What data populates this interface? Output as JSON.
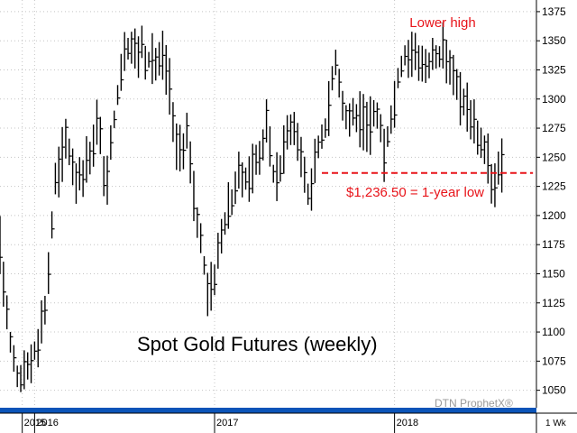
{
  "chart_data": {
    "type": "ohlc",
    "title": "Spot Gold Futures (weekly)",
    "brand": "DTN ProphetX®",
    "period_label": "1 Wk",
    "y_range": [
      1035,
      1385
    ],
    "y_ticks": [
      1050,
      1075,
      1100,
      1125,
      1150,
      1175,
      1200,
      1225,
      1250,
      1275,
      1300,
      1325,
      1350,
      1375
    ],
    "year_labels": [
      "2015",
      "2016",
      "2017",
      "2018"
    ],
    "year_label_dates": [
      "2015-12-10",
      "2016-01-04",
      "2017-01-02",
      "2018-01-01"
    ],
    "x_domain": [
      "2015-10-26",
      "2018-10-15"
    ],
    "grid": true,
    "annotations": {
      "lower_high": "Lower high",
      "low_label": "$1,236.50 = 1-year low",
      "low_level": 1236.5,
      "low_line_start": "2017-08-07",
      "low_line_end": "2018-10-08"
    },
    "anchors": [
      [
        "2015-10-26",
        1175
      ],
      [
        "2015-11-16",
        1090
      ],
      [
        "2015-11-30",
        1060
      ],
      [
        "2015-12-14",
        1060
      ],
      [
        "2016-01-04",
        1085
      ],
      [
        "2016-01-25",
        1120
      ],
      [
        "2016-02-15",
        1225
      ],
      [
        "2016-03-07",
        1265
      ],
      [
        "2016-03-28",
        1235
      ],
      [
        "2016-04-18",
        1245
      ],
      [
        "2016-05-09",
        1280
      ],
      [
        "2016-05-30",
        1225
      ],
      [
        "2016-06-13",
        1285
      ],
      [
        "2016-07-04",
        1350
      ],
      [
        "2016-07-25",
        1340
      ],
      [
        "2016-08-08",
        1345
      ],
      [
        "2016-08-29",
        1330
      ],
      [
        "2016-09-19",
        1335
      ],
      [
        "2016-10-03",
        1310
      ],
      [
        "2016-10-17",
        1255
      ],
      [
        "2016-11-07",
        1270
      ],
      [
        "2016-11-21",
        1215
      ],
      [
        "2016-12-05",
        1175
      ],
      [
        "2016-12-19",
        1140
      ],
      [
        "2017-01-02",
        1150
      ],
      [
        "2017-01-23",
        1195
      ],
      [
        "2017-02-13",
        1225
      ],
      [
        "2017-03-06",
        1235
      ],
      [
        "2017-03-27",
        1245
      ],
      [
        "2017-04-17",
        1275
      ],
      [
        "2017-05-01",
        1235
      ],
      [
        "2017-05-15",
        1240
      ],
      [
        "2017-06-05",
        1280
      ],
      [
        "2017-06-26",
        1255
      ],
      [
        "2017-07-10",
        1215
      ],
      [
        "2017-07-31",
        1255
      ],
      [
        "2017-08-21",
        1290
      ],
      [
        "2017-09-04",
        1335
      ],
      [
        "2017-09-25",
        1280
      ],
      [
        "2017-10-16",
        1285
      ],
      [
        "2017-11-06",
        1275
      ],
      [
        "2017-11-27",
        1285
      ],
      [
        "2017-12-11",
        1255
      ],
      [
        "2017-12-25",
        1285
      ],
      [
        "2018-01-15",
        1330
      ],
      [
        "2018-01-29",
        1340
      ],
      [
        "2018-02-12",
        1345
      ],
      [
        "2018-03-05",
        1320
      ],
      [
        "2018-03-26",
        1340
      ],
      [
        "2018-04-16",
        1340
      ],
      [
        "2018-05-07",
        1305
      ],
      [
        "2018-05-28",
        1295
      ],
      [
        "2018-06-18",
        1270
      ],
      [
        "2018-07-09",
        1245
      ],
      [
        "2018-07-23",
        1225
      ],
      [
        "2018-08-06",
        1240
      ]
    ]
  }
}
